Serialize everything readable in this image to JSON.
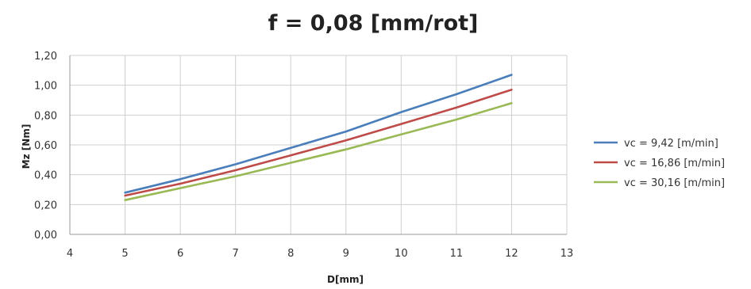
{
  "chart_data": {
    "type": "line",
    "title": "f = 0,08 [mm/rot]",
    "xlabel": "D[mm]",
    "ylabel": "Mz [Nm]",
    "xlim": [
      4,
      13
    ],
    "ylim": [
      0,
      1.2
    ],
    "x_ticks": [
      "4",
      "5",
      "6",
      "7",
      "8",
      "9",
      "10",
      "11",
      "12",
      "13"
    ],
    "y_ticks": [
      "0,00",
      "0,20",
      "0,40",
      "0,60",
      "0,80",
      "1,00",
      "1,20"
    ],
    "grid": true,
    "legend_position": "right",
    "x": [
      5,
      6,
      7,
      8,
      9,
      10,
      11,
      12
    ],
    "series": [
      {
        "name": "vc = 9,42 [m/min]",
        "color": "#4a7ebb",
        "values": [
          0.28,
          0.37,
          0.47,
          0.58,
          0.69,
          0.82,
          0.94,
          1.07
        ]
      },
      {
        "name": "vc = 16,86 [m/min]",
        "color": "#be4b48",
        "values": [
          0.26,
          0.34,
          0.43,
          0.53,
          0.63,
          0.74,
          0.85,
          0.97
        ]
      },
      {
        "name": "vc = 30,16 [m/min]",
        "color": "#98b954",
        "values": [
          0.23,
          0.31,
          0.39,
          0.48,
          0.57,
          0.67,
          0.77,
          0.88
        ]
      }
    ]
  }
}
